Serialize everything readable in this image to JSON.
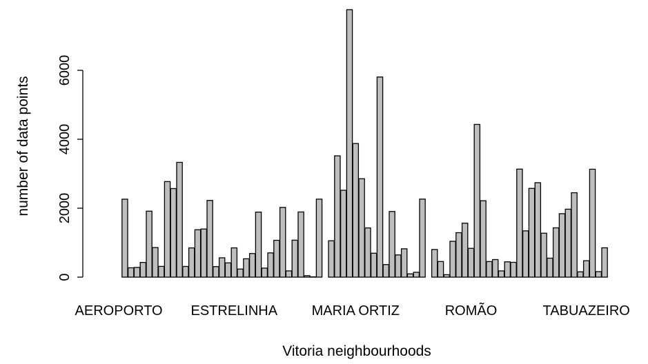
{
  "chart_data": {
    "type": "bar",
    "xlabel": "Vitoria neighbourhoods",
    "ylabel": "number of data points",
    "ylim": [
      0,
      7800
    ],
    "yticks": [
      0,
      2000,
      4000,
      6000
    ],
    "x_tick_labels": [
      "AEROPORTO",
      "ESTRELINHA",
      "MARIA ORTIZ",
      "ROMÃO",
      "TABUAZEIRO"
    ],
    "x_tick_label_bar_index": [
      0,
      19,
      39,
      58,
      77
    ],
    "bar_color": "#bebebe",
    "values": [
      0,
      2262,
      271,
      282,
      427,
      1914,
      858,
      312,
      2772,
      2570,
      3330,
      310,
      848,
      1375,
      1396,
      2225,
      305,
      561,
      413,
      849,
      235,
      532,
      685,
      1887,
      262,
      703,
      1069,
      2023,
      181,
      1072,
      1891,
      43,
      9,
      2263,
      0,
      1055,
      3519,
      2520,
      7759,
      3877,
      2855,
      1428,
      694,
      5806,
      365,
      1904,
      645,
      822,
      95,
      141,
      2264,
      0,
      802,
      453,
      71,
      1040,
      1290,
      1565,
      835,
      4431,
      2217,
      452,
      510,
      181,
      444,
      430,
      3134,
      1343,
      2575,
      2740,
      1275,
      550,
      1430,
      1841,
      1971,
      2449,
      154,
      476,
      3131,
      160,
      851
    ]
  }
}
